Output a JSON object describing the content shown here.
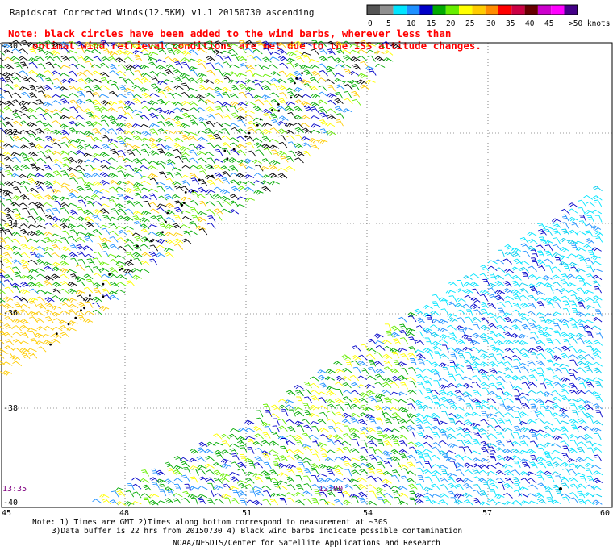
{
  "header": {
    "title": "Rapidscat Corrected Winds(12.5KM) v1.1 20150730 ascending",
    "note_line1": "Note: black circles have been added to the wind barbs, wherever less than",
    "note_line2": "optimal wind retrieval conditions are met due to the ISS attitude changes."
  },
  "colorbar": {
    "labels": [
      "0",
      "5",
      "10",
      "15",
      "20",
      "25",
      "30",
      "35",
      "40",
      "45",
      ">50 knots"
    ],
    "colors": [
      "#555555",
      "#8f8f8f",
      "#00e5ff",
      "#1e90ff",
      "#0000c8",
      "#00aa00",
      "#66ee00",
      "#ffff00",
      "#ffcc00",
      "#ff8c00",
      "#ff0000",
      "#cc0044",
      "#660000",
      "#cc00cc",
      "#ff00ff",
      "#440088"
    ]
  },
  "map": {
    "lat_labels": [
      "-30",
      "-32",
      "-34",
      "-36",
      "-38",
      "-40"
    ],
    "lon_labels": [
      "45",
      "48",
      "51",
      "54",
      "57",
      "60"
    ],
    "time_labels": [
      "13:35",
      "12:00"
    ],
    "swath_colors": {
      "upper": [
        "#00aa00",
        "#00aa00",
        "#66ee00",
        "#ffff00",
        "#ffcc00",
        "#1e90ff",
        "#0000c8",
        "#00aa00",
        "#000000"
      ],
      "lower_west": [
        "#00aa00",
        "#66ee00",
        "#ffff00",
        "#1e90ff",
        "#0000c8",
        "#00aa00"
      ],
      "lower_east": [
        "#00e5ff",
        "#00ccee",
        "#1e90ff",
        "#00e5ff",
        "#0000c8",
        "#00e5ff"
      ]
    }
  },
  "footer": {
    "note1": "Note: 1) Times are GMT 2)Times along bottom correspond to measurement at ~30S",
    "note2": "3)Data buffer is 22 hrs from 20150730 4) Black wind barbs indicate possible contamination",
    "credit": "NOAA/NESDIS/Center for Satellite Applications and Research"
  }
}
